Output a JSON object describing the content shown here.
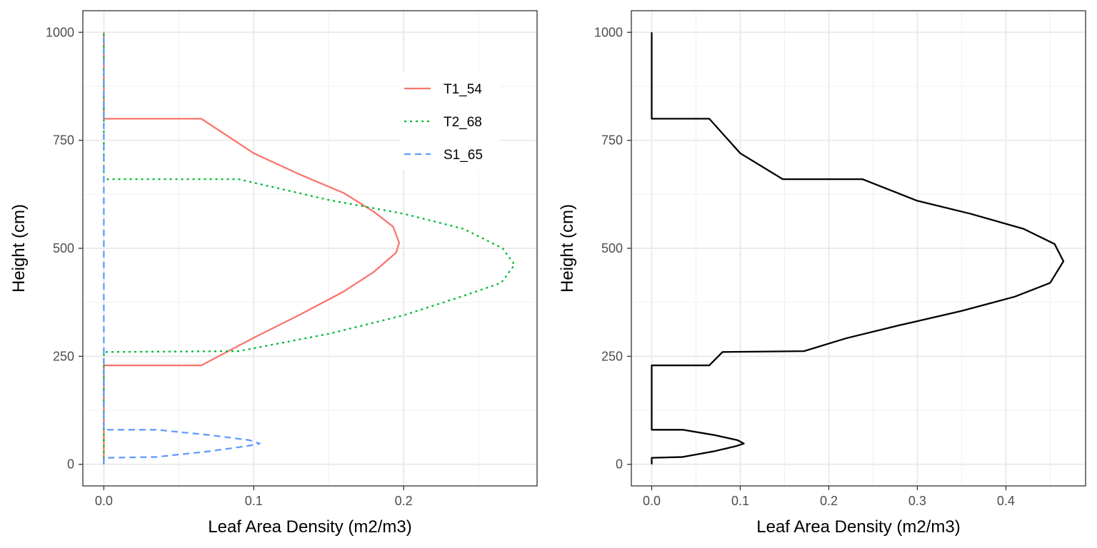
{
  "chart_data": [
    {
      "type": "line",
      "xlabel": "Leaf Area Density (m2/m3)",
      "ylabel": "Height (cm)",
      "xlim": [
        -0.014,
        0.289
      ],
      "ylim": [
        -50,
        1050
      ],
      "x_ticks": [
        0.0,
        0.1,
        0.2
      ],
      "x_tick_labels": [
        "0.0",
        "0.1",
        "0.2"
      ],
      "y_ticks": [
        0,
        250,
        500,
        750,
        1000
      ],
      "y_tick_labels": [
        "0",
        "250",
        "500",
        "750",
        "1000"
      ],
      "grid": true,
      "legend": {
        "position": "top-right"
      },
      "series": [
        {
          "name": "T1_54",
          "color": "#F8766D",
          "dash": "solid",
          "points": [
            [
              0,
              0
            ],
            [
              0,
              229
            ],
            [
              0.065,
              229
            ],
            [
              0.1,
              293
            ],
            [
              0.13,
              345
            ],
            [
              0.16,
              400
            ],
            [
              0.18,
              445
            ],
            [
              0.195,
              490
            ],
            [
              0.197,
              513
            ],
            [
              0.193,
              550
            ],
            [
              0.18,
              585
            ],
            [
              0.16,
              628
            ],
            [
              0.13,
              672
            ],
            [
              0.1,
              720
            ],
            [
              0.065,
              800
            ],
            [
              0,
              800
            ],
            [
              0,
              1000
            ]
          ]
        },
        {
          "name": "T2_68",
          "color": "#00BA38",
          "dash": "dotted",
          "points": [
            [
              0,
              0
            ],
            [
              0,
              260
            ],
            [
              0.09,
              262
            ],
            [
              0.15,
              302
            ],
            [
              0.2,
              345
            ],
            [
              0.24,
              390
            ],
            [
              0.265,
              420
            ],
            [
              0.274,
              462
            ],
            [
              0.266,
              500
            ],
            [
              0.24,
              545
            ],
            [
              0.2,
              580
            ],
            [
              0.15,
              612
            ],
            [
              0.09,
              660
            ],
            [
              0,
              660
            ],
            [
              0,
              1000
            ]
          ]
        },
        {
          "name": "S1_65",
          "color": "#619CFF",
          "dash": "dashed",
          "points": [
            [
              0,
              0
            ],
            [
              0,
              15
            ],
            [
              0.035,
              17
            ],
            [
              0.07,
              30
            ],
            [
              0.095,
              42
            ],
            [
              0.104,
              48
            ],
            [
              0.097,
              56
            ],
            [
              0.07,
              68
            ],
            [
              0.035,
              80
            ],
            [
              0,
              80
            ],
            [
              0,
              1000
            ]
          ]
        }
      ]
    },
    {
      "type": "line",
      "xlabel": "Leaf Area Density (m2/m3)",
      "ylabel": "Height (cm)",
      "xlim": [
        -0.023,
        0.49
      ],
      "ylim": [
        -50,
        1050
      ],
      "x_ticks": [
        0.0,
        0.1,
        0.2,
        0.3,
        0.4
      ],
      "x_tick_labels": [
        "0.0",
        "0.1",
        "0.2",
        "0.3",
        "0.4"
      ],
      "y_ticks": [
        0,
        250,
        500,
        750,
        1000
      ],
      "y_tick_labels": [
        "0",
        "250",
        "500",
        "750",
        "1000"
      ],
      "grid": true,
      "series": [
        {
          "color": "#000000",
          "dash": "solid",
          "points": [
            [
              0,
              0
            ],
            [
              0,
              15
            ],
            [
              0.035,
              17
            ],
            [
              0.07,
              30
            ],
            [
              0.095,
              42
            ],
            [
              0.104,
              48
            ],
            [
              0.097,
              56
            ],
            [
              0.07,
              68
            ],
            [
              0.035,
              80
            ],
            [
              0,
              80
            ],
            [
              0,
              229
            ],
            [
              0.065,
              229
            ],
            [
              0.08,
              260
            ],
            [
              0.172,
              262
            ],
            [
              0.22,
              292
            ],
            [
              0.28,
              322
            ],
            [
              0.35,
              355
            ],
            [
              0.41,
              388
            ],
            [
              0.45,
              420
            ],
            [
              0.465,
              470
            ],
            [
              0.455,
              510
            ],
            [
              0.42,
              545
            ],
            [
              0.36,
              580
            ],
            [
              0.3,
              610
            ],
            [
              0.238,
              660
            ],
            [
              0.148,
              660
            ],
            [
              0.1,
              720
            ],
            [
              0.065,
              800
            ],
            [
              0,
              800
            ],
            [
              0,
              1000
            ]
          ]
        }
      ]
    }
  ]
}
